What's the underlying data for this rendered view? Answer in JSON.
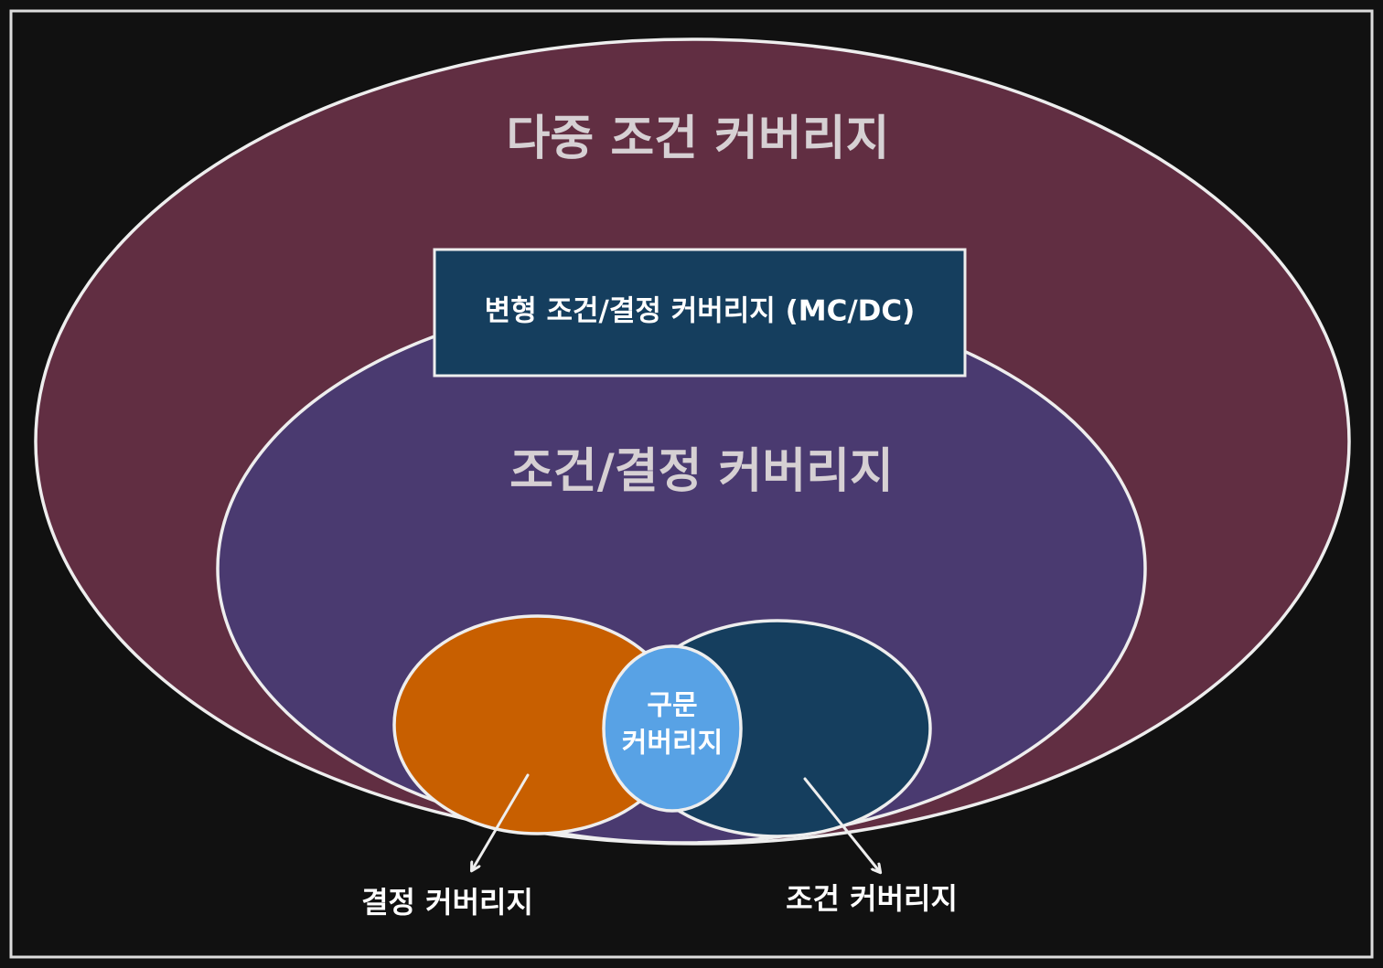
{
  "diagram": {
    "multiple_condition": {
      "label": "다중 조건 커버리지",
      "fill": "#612e42"
    },
    "mcdc": {
      "label": "변형 조건/결정 커버리지 (MC/DC)",
      "fill": "#153e5e"
    },
    "condition_decision": {
      "label": "조건/결정 커버리지",
      "fill": "#4a3a70"
    },
    "decision": {
      "label": "결정 커버리지",
      "fill": "#c85f00"
    },
    "condition": {
      "label": "조건 커버리지",
      "fill": "#153e5e"
    },
    "statement": {
      "line1": "구문",
      "line2": "커버리지",
      "fill": "#58a2e5"
    },
    "colors": {
      "background": "#111111",
      "stroke": "#eeeeee",
      "title_text": "#d6d0d3",
      "white_text": "#ffffff"
    }
  }
}
